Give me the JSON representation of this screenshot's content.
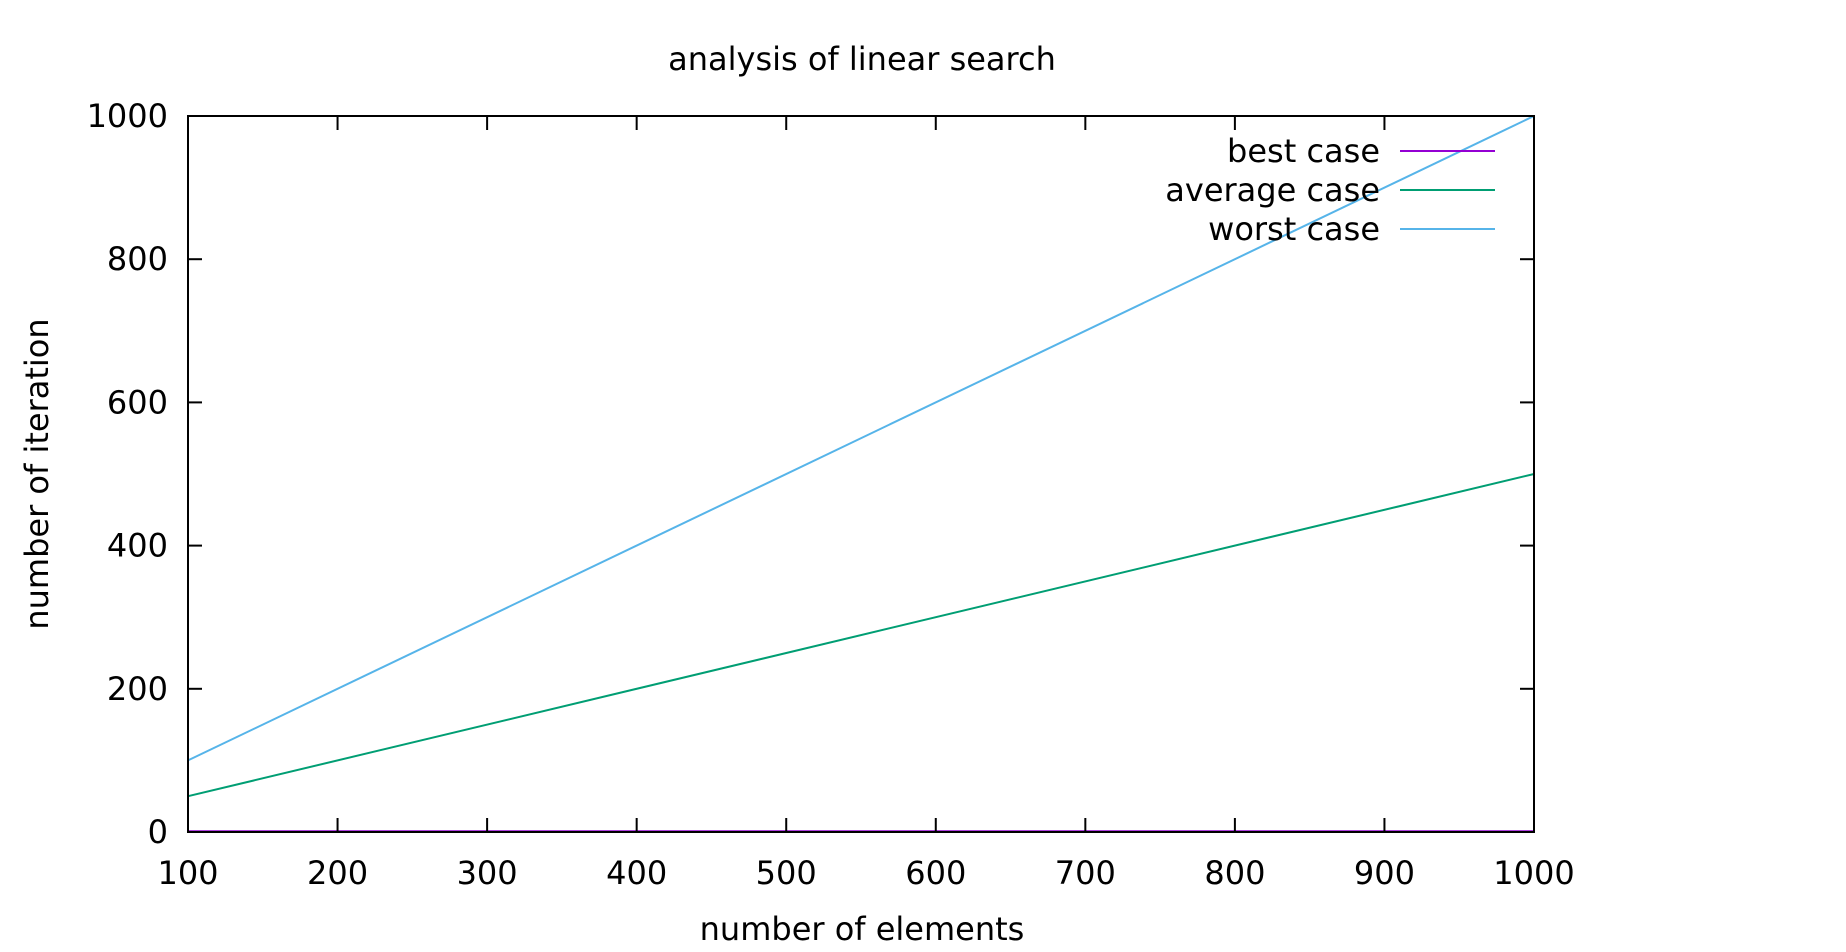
{
  "chart_data": {
    "type": "line",
    "title": "analysis of linear search",
    "xlabel": "number of elements",
    "ylabel": "number of iteration",
    "xlim": [
      100,
      1000
    ],
    "ylim": [
      0,
      1000
    ],
    "x_ticks": [
      100,
      200,
      300,
      400,
      500,
      600,
      700,
      800,
      900,
      1000
    ],
    "y_ticks": [
      0,
      200,
      400,
      600,
      800,
      1000
    ],
    "x_tick_labels": [
      "100",
      "200",
      "300",
      "400",
      "500",
      "600",
      "700",
      "800",
      "900",
      "1000"
    ],
    "y_tick_labels": [
      "0",
      "200",
      "400",
      "600",
      "800",
      "1000"
    ],
    "grid": false,
    "legend_position": "top-right",
    "series": [
      {
        "name": "best case",
        "color": "#9400d3",
        "x": [
          100,
          1000
        ],
        "y": [
          1,
          1
        ]
      },
      {
        "name": "average case",
        "color": "#009e73",
        "x": [
          100,
          1000
        ],
        "y": [
          50,
          500
        ]
      },
      {
        "name": "worst case",
        "color": "#56b4e9",
        "x": [
          100,
          1000
        ],
        "y": [
          100,
          1000
        ]
      }
    ]
  }
}
